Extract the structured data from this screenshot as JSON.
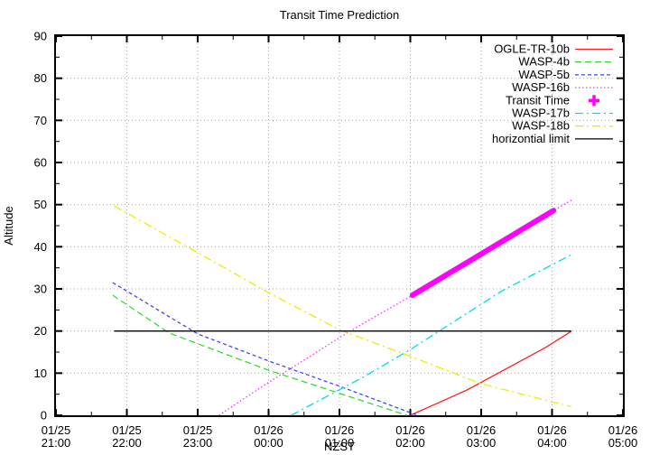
{
  "chart_data": {
    "type": "line",
    "title": "Transit Time Prediction",
    "xlabel": "NZST",
    "ylabel": "Altitude",
    "ylim": [
      0,
      90
    ],
    "xlim": [
      "01/25 21:00",
      "01/26 05:00"
    ],
    "grid": "dotted",
    "legend_position": "top-right-inside",
    "x_ticks": [
      {
        "t": 0,
        "date": "01/25",
        "time": "21:00"
      },
      {
        "t": 1,
        "date": "01/25",
        "time": "22:00"
      },
      {
        "t": 2,
        "date": "01/25",
        "time": "23:00"
      },
      {
        "t": 3,
        "date": "01/26",
        "time": "00:00"
      },
      {
        "t": 4,
        "date": "01/26",
        "time": "01:00"
      },
      {
        "t": 5,
        "date": "01/26",
        "time": "02:00"
      },
      {
        "t": 6,
        "date": "01/26",
        "time": "03:00"
      },
      {
        "t": 7,
        "date": "01/26",
        "time": "04:00"
      },
      {
        "t": 8,
        "date": "01/26",
        "time": "05:00"
      }
    ],
    "y_ticks": [
      0,
      10,
      20,
      30,
      40,
      50,
      60,
      70,
      80,
      90
    ],
    "series": [
      {
        "name": "OGLE-TR-10b",
        "color": "#ff2222",
        "style": "solid",
        "width": 1.3,
        "legend_sample": "line",
        "points": [
          [
            5.0,
            0
          ],
          [
            5.8,
            6
          ],
          [
            6.9,
            16
          ],
          [
            7.27,
            19.9
          ]
        ]
      },
      {
        "name": "WASP-4b",
        "color": "#33dd33",
        "style": "dashed",
        "width": 1.3,
        "legend_sample": "line",
        "points": [
          [
            0.8,
            28.5
          ],
          [
            1.6,
            19.5
          ],
          [
            3.0,
            10.7
          ],
          [
            4.0,
            5.2
          ],
          [
            4.95,
            0
          ]
        ]
      },
      {
        "name": "WASP-5b",
        "color": "#4444ff",
        "style": "dashed-short",
        "width": 1.3,
        "legend_sample": "line",
        "points": [
          [
            0.8,
            31.5
          ],
          [
            2.0,
            19.3
          ],
          [
            3.0,
            12.9
          ],
          [
            4.0,
            6.9
          ],
          [
            5.1,
            0
          ]
        ]
      },
      {
        "name": "WASP-16b",
        "color": "#ff33ff",
        "style": "dotted",
        "width": 1.3,
        "legend_sample": "line",
        "points": [
          [
            2.3,
            0
          ],
          [
            3.0,
            7.8
          ],
          [
            4.15,
            20
          ],
          [
            5.03,
            28.5
          ],
          [
            7.02,
            48.6
          ],
          [
            7.3,
            51.3
          ]
        ]
      },
      {
        "name": "Transit Time",
        "color": "#ff00ff",
        "style": "thick",
        "width": 6,
        "legend_sample": "plus-marker",
        "points": [
          [
            5.03,
            28.5
          ],
          [
            7.02,
            48.6
          ]
        ]
      },
      {
        "name": "WASP-17b",
        "color": "#00dddd",
        "style": "dashdot",
        "width": 1.3,
        "legend_sample": "line",
        "points": [
          [
            3.32,
            0
          ],
          [
            4.35,
            9.2
          ],
          [
            5.0,
            15.6
          ],
          [
            6.3,
            29.6
          ],
          [
            7.27,
            38.1
          ]
        ]
      },
      {
        "name": "WASP-18b",
        "color": "#eded00",
        "style": "dashdot",
        "width": 1.3,
        "legend_sample": "line",
        "points": [
          [
            0.82,
            49.7
          ],
          [
            1.0,
            48
          ],
          [
            2.0,
            38.6
          ],
          [
            3.0,
            29.1
          ],
          [
            4.0,
            20.3
          ],
          [
            5.0,
            14.0
          ],
          [
            6.0,
            7.5
          ],
          [
            7.0,
            3.2
          ],
          [
            7.27,
            2.1
          ]
        ]
      },
      {
        "name": "horizontial limit",
        "color": "#000000",
        "style": "solid",
        "width": 1.3,
        "legend_sample": "line",
        "points": [
          [
            0.82,
            20
          ],
          [
            7.27,
            20
          ]
        ]
      }
    ]
  }
}
